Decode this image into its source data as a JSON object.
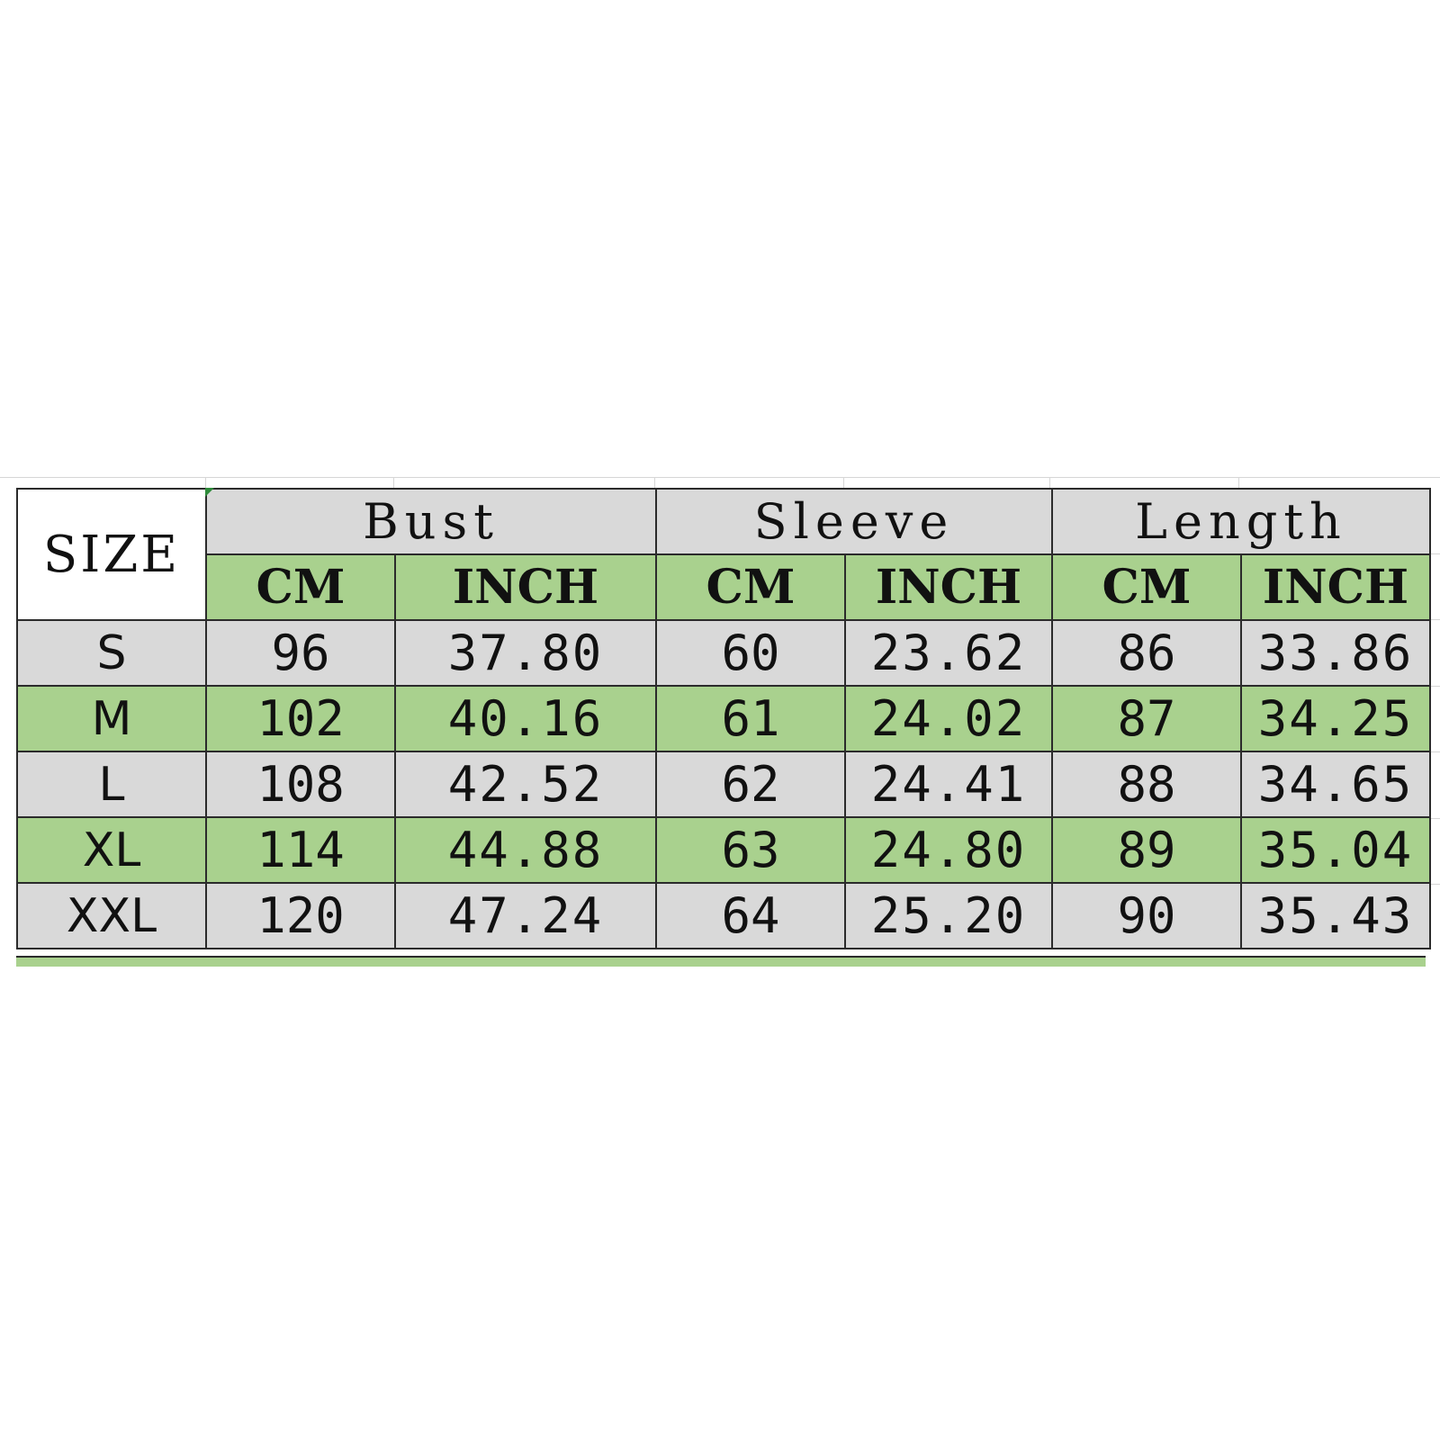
{
  "table": {
    "size_header": "SIZE",
    "groups": [
      {
        "label": "Bust",
        "units": [
          "CM",
          "INCH"
        ]
      },
      {
        "label": "Sleeve",
        "units": [
          "CM",
          "INCH"
        ]
      },
      {
        "label": "Length",
        "units": [
          "CM",
          "INCH"
        ]
      }
    ],
    "rows": [
      {
        "size": "S",
        "bust_cm": "96",
        "bust_inch": "37.80",
        "sleeve_cm": "60",
        "sleeve_inch": "23.62",
        "length_cm": "86",
        "length_inch": "33.86"
      },
      {
        "size": "M",
        "bust_cm": "102",
        "bust_inch": "40.16",
        "sleeve_cm": "61",
        "sleeve_inch": "24.02",
        "length_cm": "87",
        "length_inch": "34.25"
      },
      {
        "size": "L",
        "bust_cm": "108",
        "bust_inch": "42.52",
        "sleeve_cm": "62",
        "sleeve_inch": "24.41",
        "length_cm": "88",
        "length_inch": "34.65"
      },
      {
        "size": "XL",
        "bust_cm": "114",
        "bust_inch": "44.88",
        "sleeve_cm": "63",
        "sleeve_inch": "24.80",
        "length_cm": "89",
        "length_inch": "35.04"
      },
      {
        "size": "XXL",
        "bust_cm": "120",
        "bust_inch": "47.24",
        "sleeve_cm": "64",
        "sleeve_inch": "25.20",
        "length_cm": "90",
        "length_inch": "35.43"
      }
    ]
  },
  "colors": {
    "gray_fill": "#d9d9d9",
    "green_fill": "#a9d18e",
    "border": "#2b2b2b"
  }
}
